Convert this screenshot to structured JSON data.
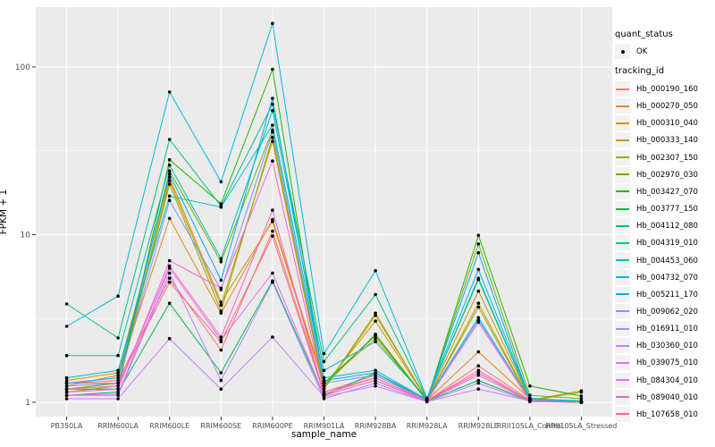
{
  "chart_data": {
    "type": "line",
    "title": "",
    "xlabel": "sample_name",
    "ylabel": "FPKM + 1",
    "y_scale": "log10",
    "ylim": [
      0.9,
      230
    ],
    "y_major_ticks": [
      1,
      10,
      100
    ],
    "y_minor_ticks": [
      3.1623,
      31.623
    ],
    "grid": "white-on-gray-panel",
    "legend_position": "right",
    "point_marker": "black-dot",
    "categories": [
      "PB350LA",
      "RRIM600LA",
      "RRIM600LE",
      "RRIM600SE",
      "RRIM600PE",
      "RRIM901LA",
      "RRIM928BA",
      "RRIM928LA",
      "RRIM928LE",
      "RRII105LA_Control",
      "RRII105LA_Stressed"
    ],
    "series": [
      {
        "name": "Hb_000190_160",
        "color": "#F8766D",
        "values": [
          1.3,
          1.35,
          5.5,
          2.05,
          10.5,
          1.15,
          1.45,
          1.02,
          1.65,
          1.03,
          1.0
        ]
      },
      {
        "name": "Hb_000270_050",
        "color": "#E88526",
        "values": [
          1.25,
          1.45,
          12.5,
          3.4,
          12.3,
          1.3,
          2.4,
          1.03,
          2.0,
          1.05,
          1.0
        ]
      },
      {
        "name": "Hb_000310_040",
        "color": "#D39200",
        "values": [
          1.35,
          1.5,
          22.0,
          3.95,
          12.0,
          1.25,
          3.05,
          1.04,
          4.6,
          1.04,
          1.0
        ]
      },
      {
        "name": "Hb_000333_140",
        "color": "#BC9D00",
        "values": [
          1.2,
          1.3,
          21.0,
          3.8,
          36.0,
          1.2,
          3.4,
          1.03,
          3.9,
          1.03,
          1.17
        ]
      },
      {
        "name": "Hb_002307_150",
        "color": "#9CA800",
        "values": [
          1.15,
          1.25,
          20.0,
          3.5,
          38.0,
          1.2,
          3.3,
          1.04,
          3.7,
          1.02,
          1.15
        ]
      },
      {
        "name": "Hb_002970_030",
        "color": "#6FB000",
        "values": [
          1.2,
          1.3,
          24.0,
          6.9,
          42.0,
          1.25,
          2.55,
          1.03,
          8.8,
          1.1,
          1.05
        ]
      },
      {
        "name": "Hb_003427_070",
        "color": "#24B700",
        "values": [
          1.2,
          1.2,
          28.0,
          15.3,
          97.0,
          1.3,
          2.5,
          1.02,
          9.9,
          1.25,
          1.09
        ]
      },
      {
        "name": "Hb_003777_150",
        "color": "#00BC51",
        "values": [
          1.1,
          1.15,
          3.9,
          1.5,
          5.3,
          1.1,
          1.5,
          1.02,
          1.35,
          1.02,
          1.0
        ]
      },
      {
        "name": "Hb_004112_080",
        "color": "#00C087",
        "values": [
          3.86,
          2.42,
          37.0,
          14.8,
          60.0,
          1.75,
          4.4,
          1.05,
          5.4,
          1.04,
          1.01
        ]
      },
      {
        "name": "Hb_004319_010",
        "color": "#00C1A7",
        "values": [
          1.9,
          1.9,
          26.0,
          7.2,
          55.0,
          1.55,
          2.3,
          1.05,
          5.5,
          1.05,
          1.02
        ]
      },
      {
        "name": "Hb_004453_060",
        "color": "#00BFC4",
        "values": [
          1.4,
          1.55,
          17.0,
          14.6,
          45.0,
          1.4,
          1.55,
          1.04,
          3.2,
          1.03,
          1.0
        ]
      },
      {
        "name": "Hb_004732_070",
        "color": "#00BAE2",
        "values": [
          2.84,
          4.3,
          71.0,
          20.7,
          182.0,
          1.95,
          6.1,
          1.06,
          6.2,
          1.06,
          1.0
        ]
      },
      {
        "name": "Hb_005211_170",
        "color": "#00ACFC",
        "values": [
          1.3,
          1.4,
          23.0,
          5.35,
          65.0,
          1.35,
          1.5,
          1.04,
          7.8,
          1.04,
          1.0
        ]
      },
      {
        "name": "Hb_009062_020",
        "color": "#7F96FF",
        "values": [
          1.25,
          1.3,
          16.0,
          4.7,
          41.0,
          1.3,
          1.45,
          1.03,
          3.1,
          1.03,
          1.0
        ]
      },
      {
        "name": "Hb_016911_010",
        "color": "#AE87FF",
        "values": [
          1.1,
          1.1,
          5.9,
          1.35,
          5.2,
          1.05,
          1.3,
          1.01,
          1.3,
          1.01,
          1.0
        ]
      },
      {
        "name": "Hb_030360_010",
        "color": "#CF78FF",
        "values": [
          1.05,
          1.05,
          2.4,
          1.2,
          2.45,
          1.08,
          1.25,
          1.01,
          1.2,
          1.02,
          1.0
        ]
      },
      {
        "name": "Hb_039075_010",
        "color": "#E56DF5",
        "values": [
          1.1,
          1.12,
          6.3,
          2.35,
          5.9,
          1.1,
          1.35,
          1.02,
          1.45,
          1.02,
          1.0
        ]
      },
      {
        "name": "Hb_084304_010",
        "color": "#F465E0",
        "values": [
          1.15,
          1.2,
          7.0,
          4.8,
          27.5,
          1.15,
          1.4,
          1.02,
          3.0,
          1.02,
          1.0
        ]
      },
      {
        "name": "Hb_089040_010",
        "color": "#FF62BF",
        "values": [
          1.2,
          1.25,
          6.5,
          2.45,
          14.0,
          1.1,
          1.35,
          1.02,
          1.55,
          1.02,
          1.0
        ]
      },
      {
        "name": "Hb_107658_010",
        "color": "#FF6885",
        "values": [
          1.3,
          1.3,
          5.2,
          2.3,
          9.8,
          1.12,
          1.4,
          1.02,
          1.5,
          1.02,
          1.0
        ]
      }
    ],
    "legend": {
      "quant_status": {
        "title": "quant_status",
        "items": [
          {
            "label": "OK",
            "marker": "point"
          }
        ]
      },
      "tracking_id": {
        "title": "tracking_id"
      }
    },
    "panel_color": "#EBEBEB",
    "gridline_color": "#FFFFFF"
  }
}
